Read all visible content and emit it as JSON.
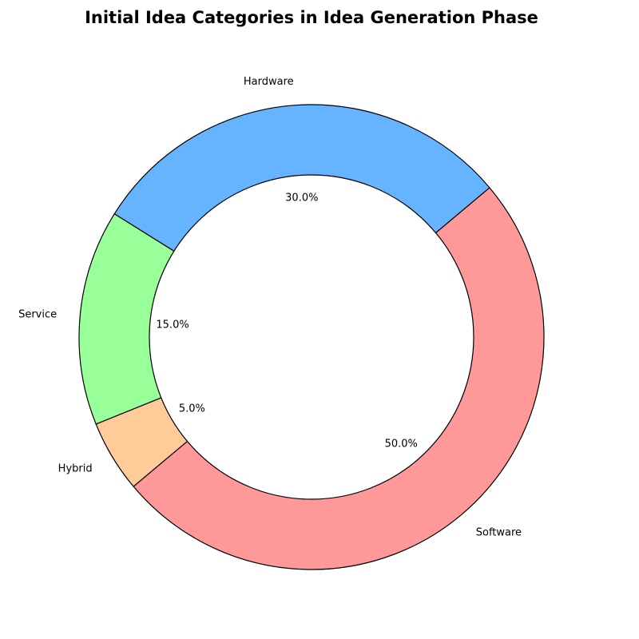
{
  "chart_data": {
    "type": "pie",
    "variant": "donut",
    "title": "Initial Idea Categories in Idea Generation Phase",
    "categories": [
      "Software",
      "Hardware",
      "Service",
      "Hybrid"
    ],
    "values": [
      50,
      30,
      15,
      5
    ],
    "percent_labels": [
      "50.0%",
      "30.0%",
      "15.0%",
      "5.0%"
    ],
    "colors": [
      "#ff9999",
      "#66b3ff",
      "#99ff99",
      "#ffcc99"
    ],
    "edge_color": "#000000",
    "legend": "none"
  }
}
